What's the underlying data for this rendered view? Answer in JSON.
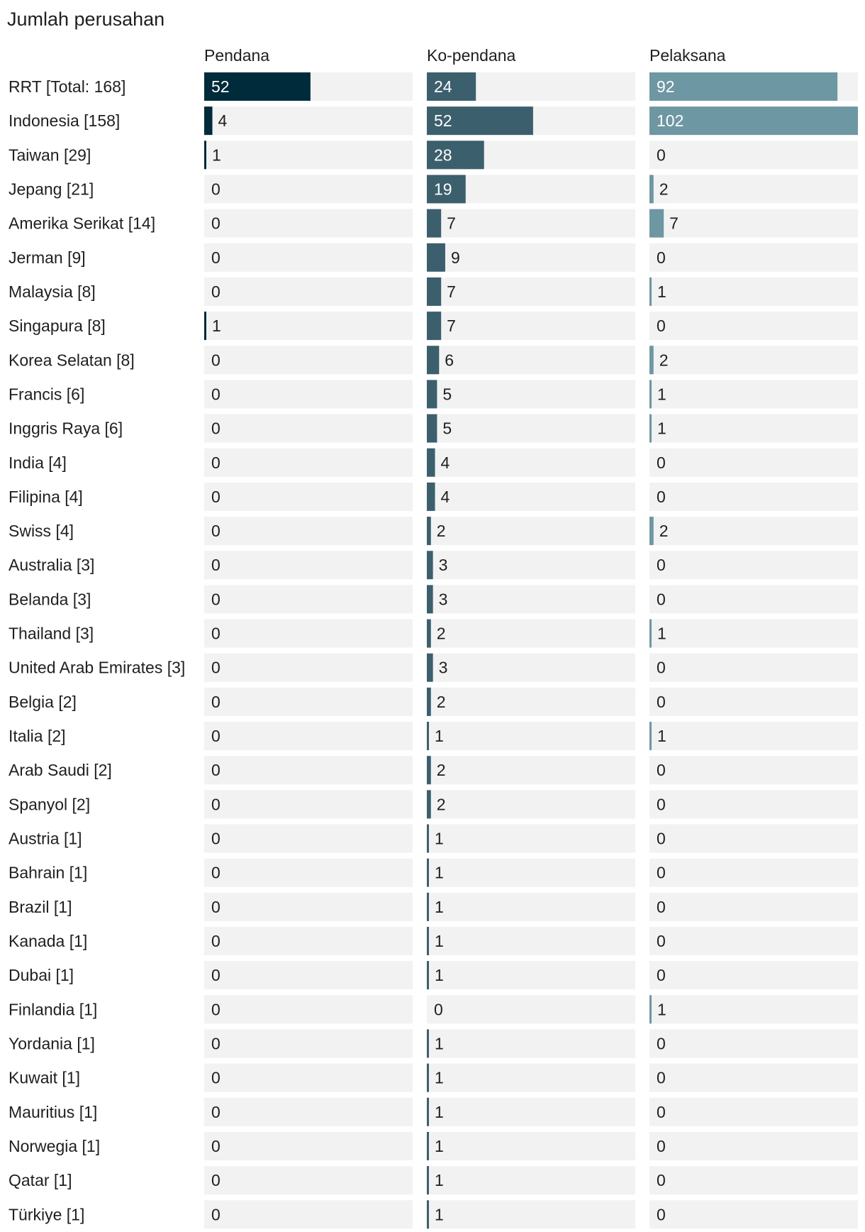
{
  "chart_data": {
    "type": "bar",
    "title": "Jumlah perusahan",
    "categories": [
      "RRT [Total: 168]",
      "Indonesia [158]",
      "Taiwan [29]",
      "Jepang [21]",
      "Amerika Serikat [14]",
      "Jerman [9]",
      "Malaysia [8]",
      "Singapura [8]",
      "Korea Selatan [8]",
      "Francis [6]",
      "Inggris Raya [6]",
      "India [4]",
      "Filipina [4]",
      "Swiss [4]",
      "Australia [3]",
      "Belanda [3]",
      "Thailand [3]",
      "United Arab Emirates [3]",
      "Belgia [2]",
      "Italia [2]",
      "Arab Saudi [2]",
      "Spanyol [2]",
      "Austria [1]",
      "Bahrain [1]",
      "Brazil [1]",
      "Kanada [1]",
      "Dubai [1]",
      "Finlandia [1]",
      "Yordania [1]",
      "Kuwait [1]",
      "Mauritius [1]",
      "Norwegia [1]",
      "Qatar [1]",
      "Türkiye [1]"
    ],
    "series": [
      {
        "name": "Pendana",
        "color": "#002b3a",
        "values": [
          52,
          4,
          1,
          0,
          0,
          0,
          0,
          1,
          0,
          0,
          0,
          0,
          0,
          0,
          0,
          0,
          0,
          0,
          0,
          0,
          0,
          0,
          0,
          0,
          0,
          0,
          0,
          0,
          0,
          0,
          0,
          0,
          0,
          0
        ]
      },
      {
        "name": "Ko-pendana",
        "color": "#3b5f6d",
        "values": [
          24,
          52,
          28,
          19,
          7,
          9,
          7,
          7,
          6,
          5,
          5,
          4,
          4,
          2,
          3,
          3,
          2,
          3,
          2,
          1,
          2,
          2,
          1,
          1,
          1,
          1,
          1,
          0,
          1,
          1,
          1,
          1,
          1,
          1
        ]
      },
      {
        "name": "Pelaksana",
        "color": "#6d97a3",
        "values": [
          92,
          102,
          0,
          2,
          7,
          0,
          1,
          0,
          2,
          1,
          1,
          0,
          0,
          2,
          0,
          0,
          1,
          0,
          0,
          1,
          0,
          0,
          0,
          0,
          0,
          0,
          0,
          1,
          0,
          0,
          0,
          0,
          0,
          0
        ]
      }
    ],
    "xlim": [
      0,
      102
    ],
    "track_color": "#f2f2f2",
    "text_dark": "#1f1f1f",
    "text_light": "#ffffff"
  }
}
